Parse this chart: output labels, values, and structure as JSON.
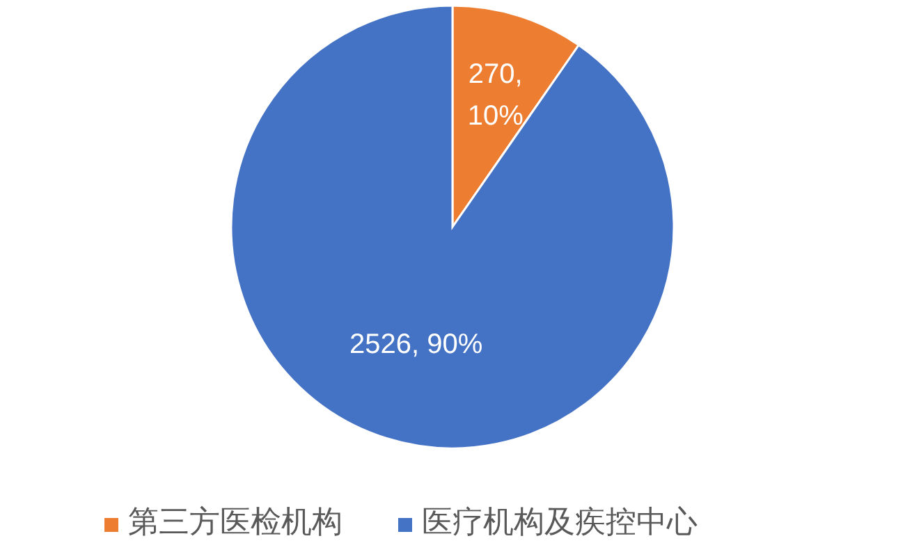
{
  "chart_data": {
    "type": "pie",
    "categories": [
      "第三方医检机构",
      "医疗机构及疾控中心"
    ],
    "values": [
      270,
      2526
    ],
    "colors": [
      "#ed7d31",
      "#4472c4"
    ],
    "value_labels": [
      "270, 10%",
      "2526, 90%"
    ],
    "legend": "bottom"
  }
}
